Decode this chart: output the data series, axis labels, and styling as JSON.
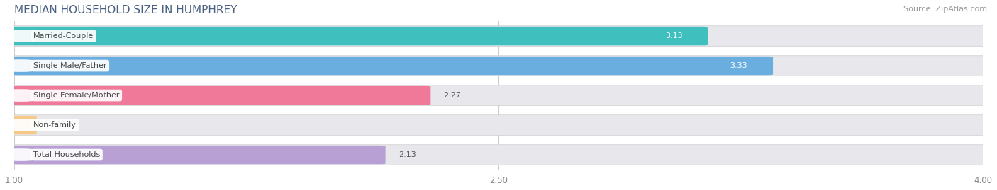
{
  "title": "MEDIAN HOUSEHOLD SIZE IN HUMPHREY",
  "source": "Source: ZipAtlas.com",
  "categories": [
    "Married-Couple",
    "Single Male/Father",
    "Single Female/Mother",
    "Non-family",
    "Total Households"
  ],
  "values": [
    3.13,
    3.33,
    2.27,
    1.05,
    2.13
  ],
  "bar_colors": [
    "#40bfbf",
    "#6aaee0",
    "#f07898",
    "#f5c98a",
    "#b89fd4"
  ],
  "bar_bg_color": "#e8e8ec",
  "xmin": 1.0,
  "xmax": 4.0,
  "xticks": [
    1.0,
    2.5,
    4.0
  ],
  "label_fontsize": 8.0,
  "value_fontsize": 8.0,
  "title_fontsize": 11,
  "source_fontsize": 8,
  "title_color": "#4a6080",
  "source_color": "#999999"
}
